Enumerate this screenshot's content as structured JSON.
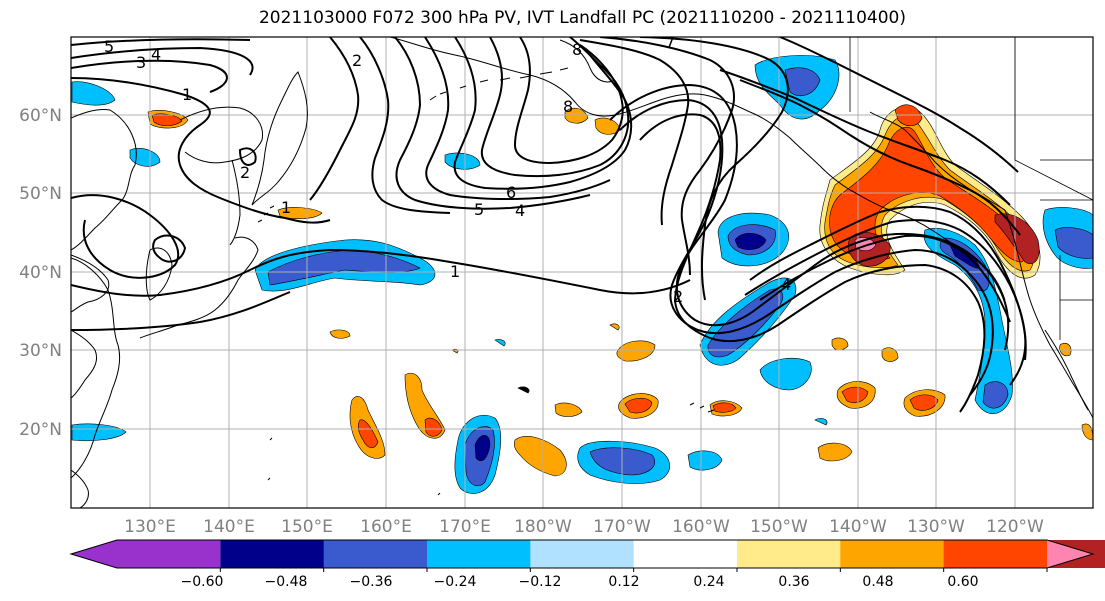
{
  "title": "2021103000 F072 300 hPa PV, IVT Landfall PC (2021110200 - 2021110400)",
  "map": {
    "lon_labels": [
      "130°E",
      "140°E",
      "150°E",
      "160°E",
      "170°E",
      "180°W",
      "170°W",
      "160°W",
      "150°W",
      "140°W",
      "130°W",
      "120°W"
    ],
    "lat_labels": [
      "60°N",
      "50°N",
      "40°N",
      "30°N",
      "20°N"
    ],
    "contour_labels": [
      "5",
      "4",
      "3",
      "2",
      "1",
      "1",
      "1",
      "2",
      "8",
      "8",
      "7",
      "6",
      "5",
      "4",
      "2",
      "4"
    ]
  },
  "colorbar": {
    "tick_labels": [
      "−0.60",
      "−0.48",
      "−0.36",
      "−0.24",
      "−0.12",
      "0.12",
      "0.24",
      "0.36",
      "0.48",
      "0.60"
    ],
    "colors": [
      "#9932cc",
      "#00008b",
      "#3a5bcd",
      "#00bfff",
      "#b0e2ff",
      "#ffffff",
      "#ffeb8a",
      "#ffa500",
      "#ff4500",
      "#b22222",
      "#ff85b0"
    ]
  },
  "palette": {
    "grid": "#b0b0b0",
    "coast": "#000000",
    "contour": "#000000"
  }
}
